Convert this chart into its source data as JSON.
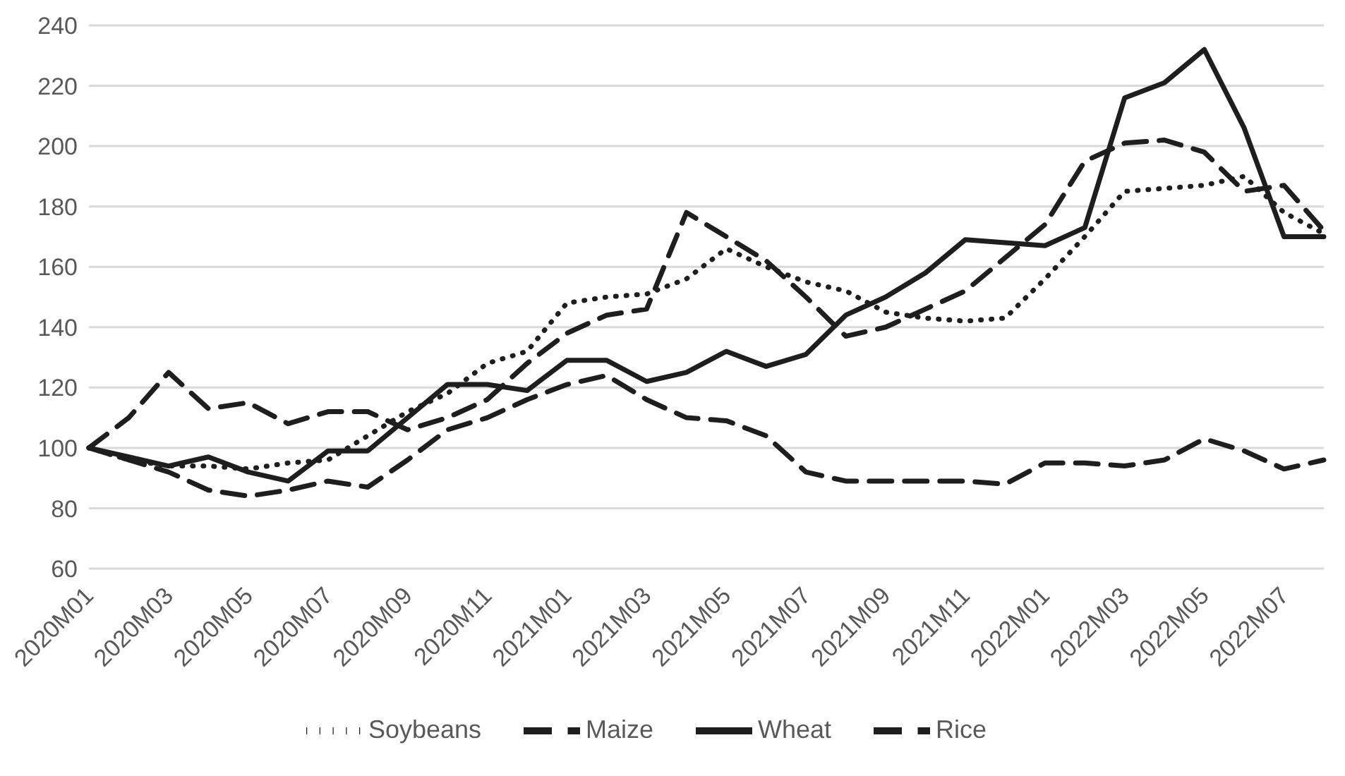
{
  "chart_data": {
    "type": "line",
    "categories": [
      "2020M01",
      null,
      "2020M03",
      null,
      "2020M05",
      null,
      "2020M07",
      null,
      "2020M09",
      null,
      "2020M11",
      null,
      "2021M01",
      null,
      "2021M03",
      null,
      "2021M05",
      null,
      "2021M07",
      null,
      "2021M09",
      null,
      "2021M11",
      null,
      "2022M01",
      null,
      "2022M03",
      null,
      "2022M05",
      null,
      "2022M07",
      null
    ],
    "series": [
      {
        "name": "Soybeans",
        "color": "#1e1e1e",
        "line_style": "dotted",
        "values": [
          100,
          96,
          94,
          94,
          93,
          95,
          96,
          104,
          112,
          118,
          128,
          132,
          148,
          150,
          151,
          156,
          166,
          160,
          155,
          152,
          145,
          143,
          142,
          143,
          156,
          170,
          185,
          186,
          187,
          190,
          178,
          171
        ]
      },
      {
        "name": "Maize",
        "color": "#1e1e1e",
        "line_style": "dashed",
        "values": [
          100,
          110,
          125,
          113,
          115,
          108,
          112,
          112,
          106,
          110,
          116,
          128,
          138,
          144,
          146,
          178,
          170,
          162,
          150,
          137,
          140,
          146,
          152,
          163,
          174,
          195,
          201,
          202,
          198,
          185,
          187,
          172
        ]
      },
      {
        "name": "Wheat",
        "color": "#1e1e1e",
        "line_style": "solid",
        "values": [
          100,
          97,
          94,
          97,
          92,
          89,
          99,
          99,
          110,
          121,
          121,
          119,
          129,
          129,
          122,
          125,
          132,
          127,
          131,
          144,
          150,
          158,
          169,
          168,
          167,
          173,
          216,
          221,
          232,
          206,
          170,
          170
        ]
      },
      {
        "name": "Rice",
        "color": "#1e1e1e",
        "line_style": "dashed",
        "values": [
          100,
          96,
          92,
          86,
          84,
          86,
          89,
          87,
          96,
          106,
          110,
          116,
          121,
          124,
          116,
          110,
          109,
          104,
          92,
          89,
          89,
          89,
          89,
          88,
          95,
          95,
          94,
          96,
          103,
          99,
          93,
          96
        ]
      }
    ],
    "ylim": [
      60,
      240
    ],
    "yticks": [
      60,
      80,
      100,
      120,
      140,
      160,
      180,
      200,
      220,
      240
    ],
    "grid": "y",
    "legend": "bottom",
    "marker": "none"
  }
}
